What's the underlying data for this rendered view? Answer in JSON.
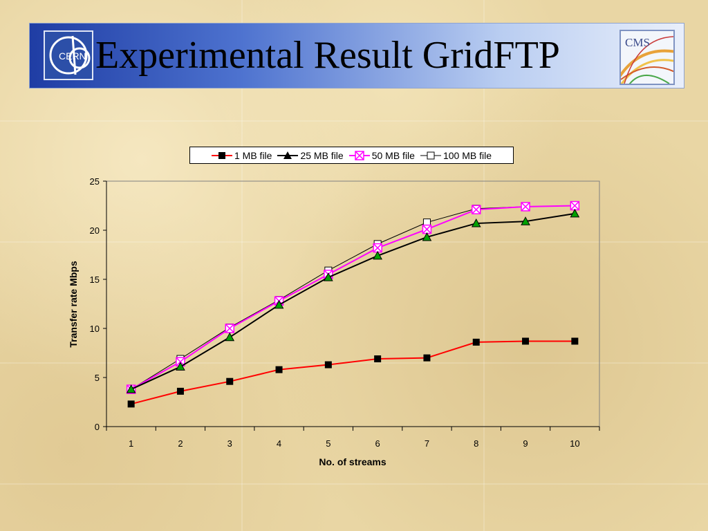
{
  "slide": {
    "title": "Experimental Result GridFTP",
    "logos": {
      "left_text": "CERN",
      "right_text": "CMS"
    }
  },
  "colors": {
    "header_start": "#1f3da4",
    "header_end": "#e9effb",
    "series_1mb": "#ff0000",
    "series_25mb": "#00cc00",
    "series_50mb": "#ff00ff",
    "series_100mb": "#000000"
  },
  "chart_data": {
    "type": "line",
    "xlabel": "No. of streams",
    "ylabel": "Transfer rate Mbps",
    "x": [
      1,
      2,
      3,
      4,
      5,
      6,
      7,
      8,
      9,
      10
    ],
    "ylim": [
      0,
      25
    ],
    "yticks": [
      0,
      5,
      10,
      15,
      20,
      25
    ],
    "grid": false,
    "legend_position": "top",
    "series": [
      {
        "name": "1 MB file",
        "marker": "filled-square",
        "values": [
          2.3,
          3.6,
          4.6,
          5.8,
          6.3,
          6.9,
          7.0,
          8.6,
          8.7,
          8.7
        ]
      },
      {
        "name": "25 MB file",
        "marker": "filled-triangle",
        "values": [
          3.8,
          6.1,
          9.1,
          12.4,
          15.2,
          17.4,
          19.3,
          20.7,
          20.9,
          21.7
        ]
      },
      {
        "name": "50 MB file",
        "marker": "x-box",
        "values": [
          3.8,
          6.6,
          10.0,
          12.8,
          15.5,
          18.2,
          20.1,
          22.1,
          22.4,
          22.5
        ]
      },
      {
        "name": "100 MB file",
        "marker": "open-square",
        "values": [
          3.8,
          6.9,
          10.1,
          12.9,
          15.9,
          18.6,
          20.8,
          22.2,
          22.4,
          22.5
        ]
      }
    ]
  }
}
